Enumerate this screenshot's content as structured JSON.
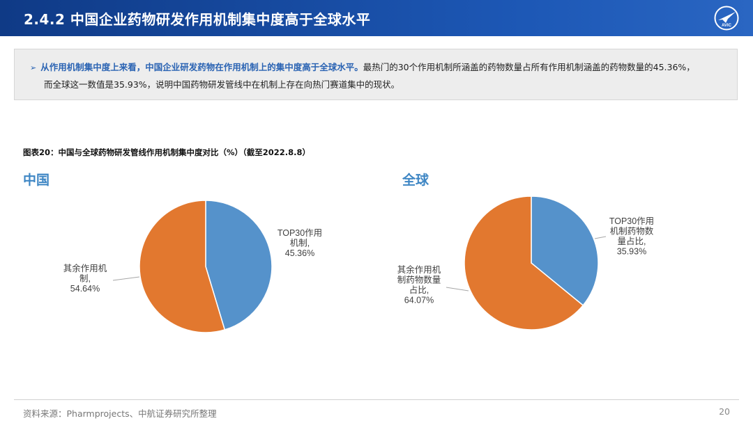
{
  "header": {
    "title": "2.4.2 中国企业药物研发作用机制集中度高于全球水平",
    "logo_text": "AVIC"
  },
  "summary": {
    "arrow": "➢",
    "highlight": "从作用机制集中度上来看，中国企业研发药物在作用机制上的集中度高于全球水平。",
    "line1_rest": "最热门的30个作用机制所涵盖的药物数量占所有作用机制涵盖的药物数量的45.36%，",
    "line2": "而全球这一数值是35.93%，说明中国药物研发管线中在机制上存在向热门赛道集中的现状。"
  },
  "figure": {
    "title": "图表20：中国与全球药物研发管线作用机制集中度对比（%）（截至2022.8.8）"
  },
  "chart_data": [
    {
      "type": "pie",
      "title": "中国",
      "slices": [
        {
          "label": "TOP30作用机制",
          "value": 45.36,
          "color": "#5592cb",
          "label_lines": [
            "TOP30作用",
            "机制,",
            "45.36%"
          ]
        },
        {
          "label": "其余作用机制",
          "value": 54.64,
          "color": "#e2782f",
          "label_lines": [
            "其余作用机",
            "制,",
            "54.64%"
          ]
        }
      ]
    },
    {
      "type": "pie",
      "title": "全球",
      "slices": [
        {
          "label": "TOP30作用机制药物数量占比",
          "value": 35.93,
          "color": "#5592cb",
          "label_lines": [
            "TOP30作用",
            "机制药物数",
            "量占比,",
            "35.93%"
          ]
        },
        {
          "label": "其余作用机制药物数量占比",
          "value": 64.07,
          "color": "#e2782f",
          "label_lines": [
            "其余作用机",
            "制药物数量",
            "占比,",
            "64.07%"
          ]
        }
      ]
    }
  ],
  "footer": {
    "source": "资料来源：Pharmprojects、中航证券研究所整理",
    "page": "20"
  }
}
